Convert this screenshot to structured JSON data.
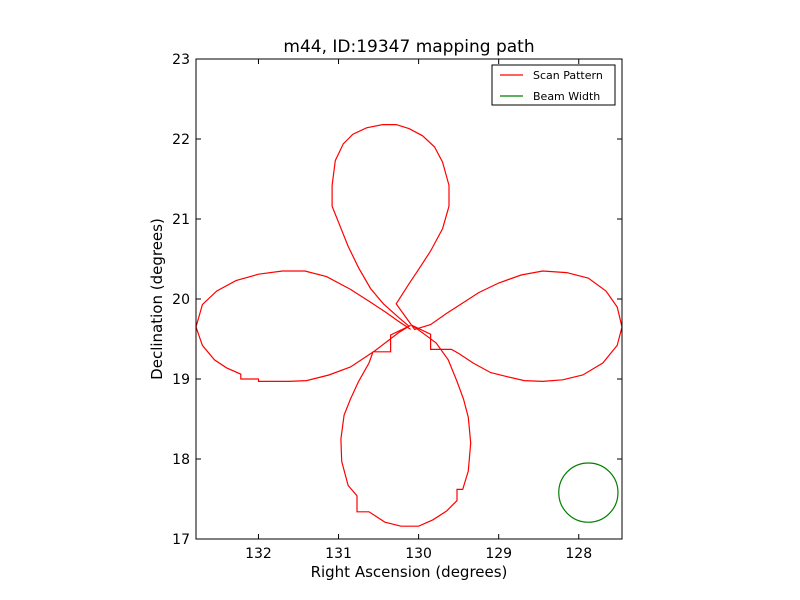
{
  "chart_data": {
    "type": "line",
    "title": "m44, ID:19347 mapping path",
    "xlabel": "Right Ascension (degrees)",
    "ylabel": "Declination (degrees)",
    "xlim": [
      132.78,
      127.46
    ],
    "ylim": [
      17,
      23
    ],
    "xticks": [
      132,
      131,
      130,
      129,
      128
    ],
    "xtick_labels": [
      "132",
      "131",
      "130",
      "129",
      "128"
    ],
    "yticks": [
      17,
      18,
      19,
      20,
      21,
      22,
      23
    ],
    "ytick_labels": [
      "17",
      "18",
      "19",
      "20",
      "21",
      "22",
      "23"
    ],
    "grid": false,
    "legend": {
      "placement": "top-right",
      "entries": [
        {
          "label": "Scan Pattern",
          "color": "#ff0000"
        },
        {
          "label": "Beam Width",
          "color": "#008000"
        }
      ]
    },
    "series": [
      {
        "name": "Scan Pattern",
        "color": "#ff0000",
        "points": [
          [
            130.12,
            19.66
          ],
          [
            130.25,
            19.77
          ],
          [
            130.44,
            19.94
          ],
          [
            130.6,
            20.13
          ],
          [
            130.75,
            20.39
          ],
          [
            130.88,
            20.66
          ],
          [
            131.0,
            20.96
          ],
          [
            131.08,
            21.16
          ],
          [
            131.08,
            21.42
          ],
          [
            131.04,
            21.73
          ],
          [
            130.94,
            21.94
          ],
          [
            130.82,
            22.06
          ],
          [
            130.65,
            22.14
          ],
          [
            130.45,
            22.18
          ],
          [
            130.28,
            22.18
          ],
          [
            130.12,
            22.13
          ],
          [
            129.95,
            22.04
          ],
          [
            129.8,
            21.9
          ],
          [
            129.7,
            21.71
          ],
          [
            129.62,
            21.42
          ],
          [
            129.62,
            21.16
          ],
          [
            129.7,
            20.88
          ],
          [
            129.85,
            20.6
          ],
          [
            130.0,
            20.37
          ],
          [
            130.12,
            20.19
          ],
          [
            130.28,
            19.94
          ],
          [
            130.05,
            19.62
          ],
          [
            129.85,
            19.68
          ],
          [
            129.65,
            19.82
          ],
          [
            129.45,
            19.95
          ],
          [
            129.25,
            20.08
          ],
          [
            129.0,
            20.2
          ],
          [
            128.72,
            20.3
          ],
          [
            128.45,
            20.35
          ],
          [
            128.15,
            20.33
          ],
          [
            127.88,
            20.26
          ],
          [
            127.66,
            20.1
          ],
          [
            127.52,
            19.9
          ],
          [
            127.46,
            19.65
          ],
          [
            127.52,
            19.42
          ],
          [
            127.7,
            19.2
          ],
          [
            127.95,
            19.05
          ],
          [
            128.2,
            18.99
          ],
          [
            128.45,
            18.97
          ],
          [
            128.68,
            18.98
          ],
          [
            128.9,
            19.03
          ],
          [
            129.1,
            19.08
          ],
          [
            129.32,
            19.2
          ],
          [
            129.5,
            19.32
          ],
          [
            129.59,
            19.37
          ],
          [
            129.65,
            19.37
          ],
          [
            129.85,
            19.37
          ],
          [
            129.85,
            19.56
          ],
          [
            130.08,
            19.67
          ],
          [
            129.9,
            19.54
          ],
          [
            129.78,
            19.45
          ],
          [
            129.63,
            19.24
          ],
          [
            129.52,
            18.97
          ],
          [
            129.44,
            18.75
          ],
          [
            129.38,
            18.52
          ],
          [
            129.35,
            18.2
          ],
          [
            129.38,
            17.85
          ],
          [
            129.45,
            17.62
          ],
          [
            129.52,
            17.62
          ],
          [
            129.52,
            17.48
          ],
          [
            129.65,
            17.35
          ],
          [
            129.82,
            17.24
          ],
          [
            130.0,
            17.16
          ],
          [
            130.22,
            17.16
          ],
          [
            130.42,
            17.21
          ],
          [
            130.62,
            17.34
          ],
          [
            130.77,
            17.34
          ],
          [
            130.77,
            17.54
          ],
          [
            130.88,
            17.67
          ],
          [
            130.96,
            17.97
          ],
          [
            130.97,
            18.25
          ],
          [
            130.93,
            18.55
          ],
          [
            130.85,
            18.75
          ],
          [
            130.75,
            18.97
          ],
          [
            130.62,
            19.2
          ],
          [
            130.57,
            19.34
          ],
          [
            130.35,
            19.34
          ],
          [
            130.35,
            19.55
          ],
          [
            130.1,
            19.67
          ],
          [
            130.25,
            19.58
          ],
          [
            130.55,
            19.35
          ],
          [
            130.85,
            19.15
          ],
          [
            131.12,
            19.05
          ],
          [
            131.4,
            18.98
          ],
          [
            131.62,
            18.97
          ],
          [
            131.84,
            18.97
          ],
          [
            132.0,
            18.97
          ],
          [
            132.0,
            19.0
          ],
          [
            132.22,
            19.0
          ],
          [
            132.22,
            19.06
          ],
          [
            132.4,
            19.14
          ],
          [
            132.55,
            19.24
          ],
          [
            132.7,
            19.42
          ],
          [
            132.78,
            19.65
          ],
          [
            132.7,
            19.93
          ],
          [
            132.52,
            20.1
          ],
          [
            132.28,
            20.23
          ],
          [
            132.0,
            20.31
          ],
          [
            131.7,
            20.35
          ],
          [
            131.42,
            20.35
          ],
          [
            131.15,
            20.28
          ],
          [
            130.85,
            20.12
          ],
          [
            130.6,
            19.96
          ],
          [
            130.42,
            19.84
          ],
          [
            130.25,
            19.72
          ],
          [
            130.1,
            19.62
          ]
        ]
      },
      {
        "name": "Beam Width",
        "color": "#008000",
        "circle": {
          "center": [
            127.88,
            17.58
          ],
          "radius": 0.37
        }
      }
    ]
  }
}
